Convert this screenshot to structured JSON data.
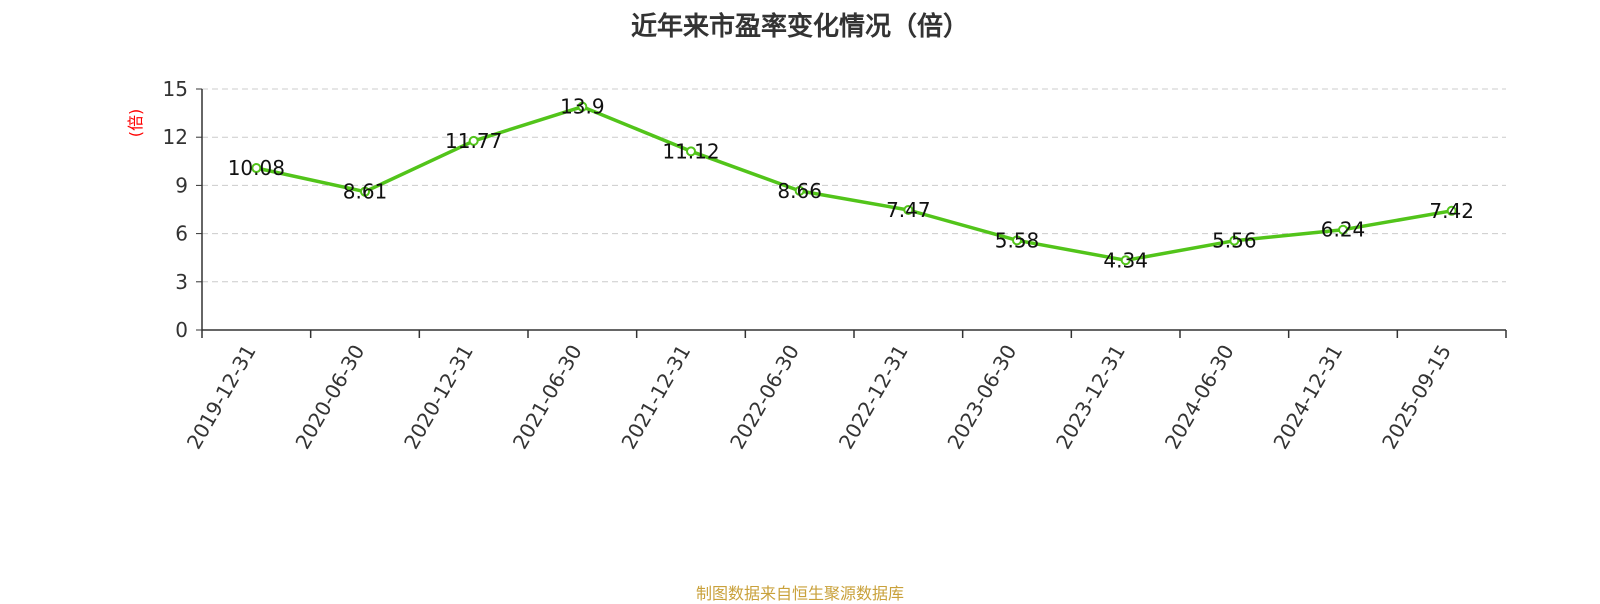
{
  "chart_data": {
    "type": "line",
    "title": "近年来市盈率变化情况（倍）",
    "ylabel": "(倍)",
    "xlabel": "",
    "categories": [
      "2019-12-31",
      "2020-06-30",
      "2020-12-31",
      "2021-06-30",
      "2021-12-31",
      "2022-06-30",
      "2022-12-31",
      "2023-06-30",
      "2023-12-31",
      "2024-06-30",
      "2024-12-31",
      "2025-09-15"
    ],
    "series": [
      {
        "values": [
          10.08,
          8.61,
          11.77,
          13.9,
          11.12,
          8.66,
          7.47,
          5.58,
          4.34,
          5.56,
          6.24,
          7.42
        ]
      }
    ],
    "data_labels": [
      "10.08",
      "8.61",
      "11.77",
      "13.9",
      "11.12",
      "8.66",
      "7.47",
      "5.58",
      "4.34",
      "5.56",
      "6.24",
      "7.42"
    ],
    "ylim": [
      0,
      15
    ],
    "yticks": [
      0,
      3,
      6,
      9,
      12,
      15
    ],
    "ytick_labels": [
      "0",
      "3",
      "6",
      "9",
      "12",
      "15"
    ],
    "grid": true,
    "legend": "none",
    "line_color": "#52c41a",
    "ylabel_color": "#ff0000"
  },
  "footer": {
    "source": "制图数据来自恒生聚源数据库"
  }
}
